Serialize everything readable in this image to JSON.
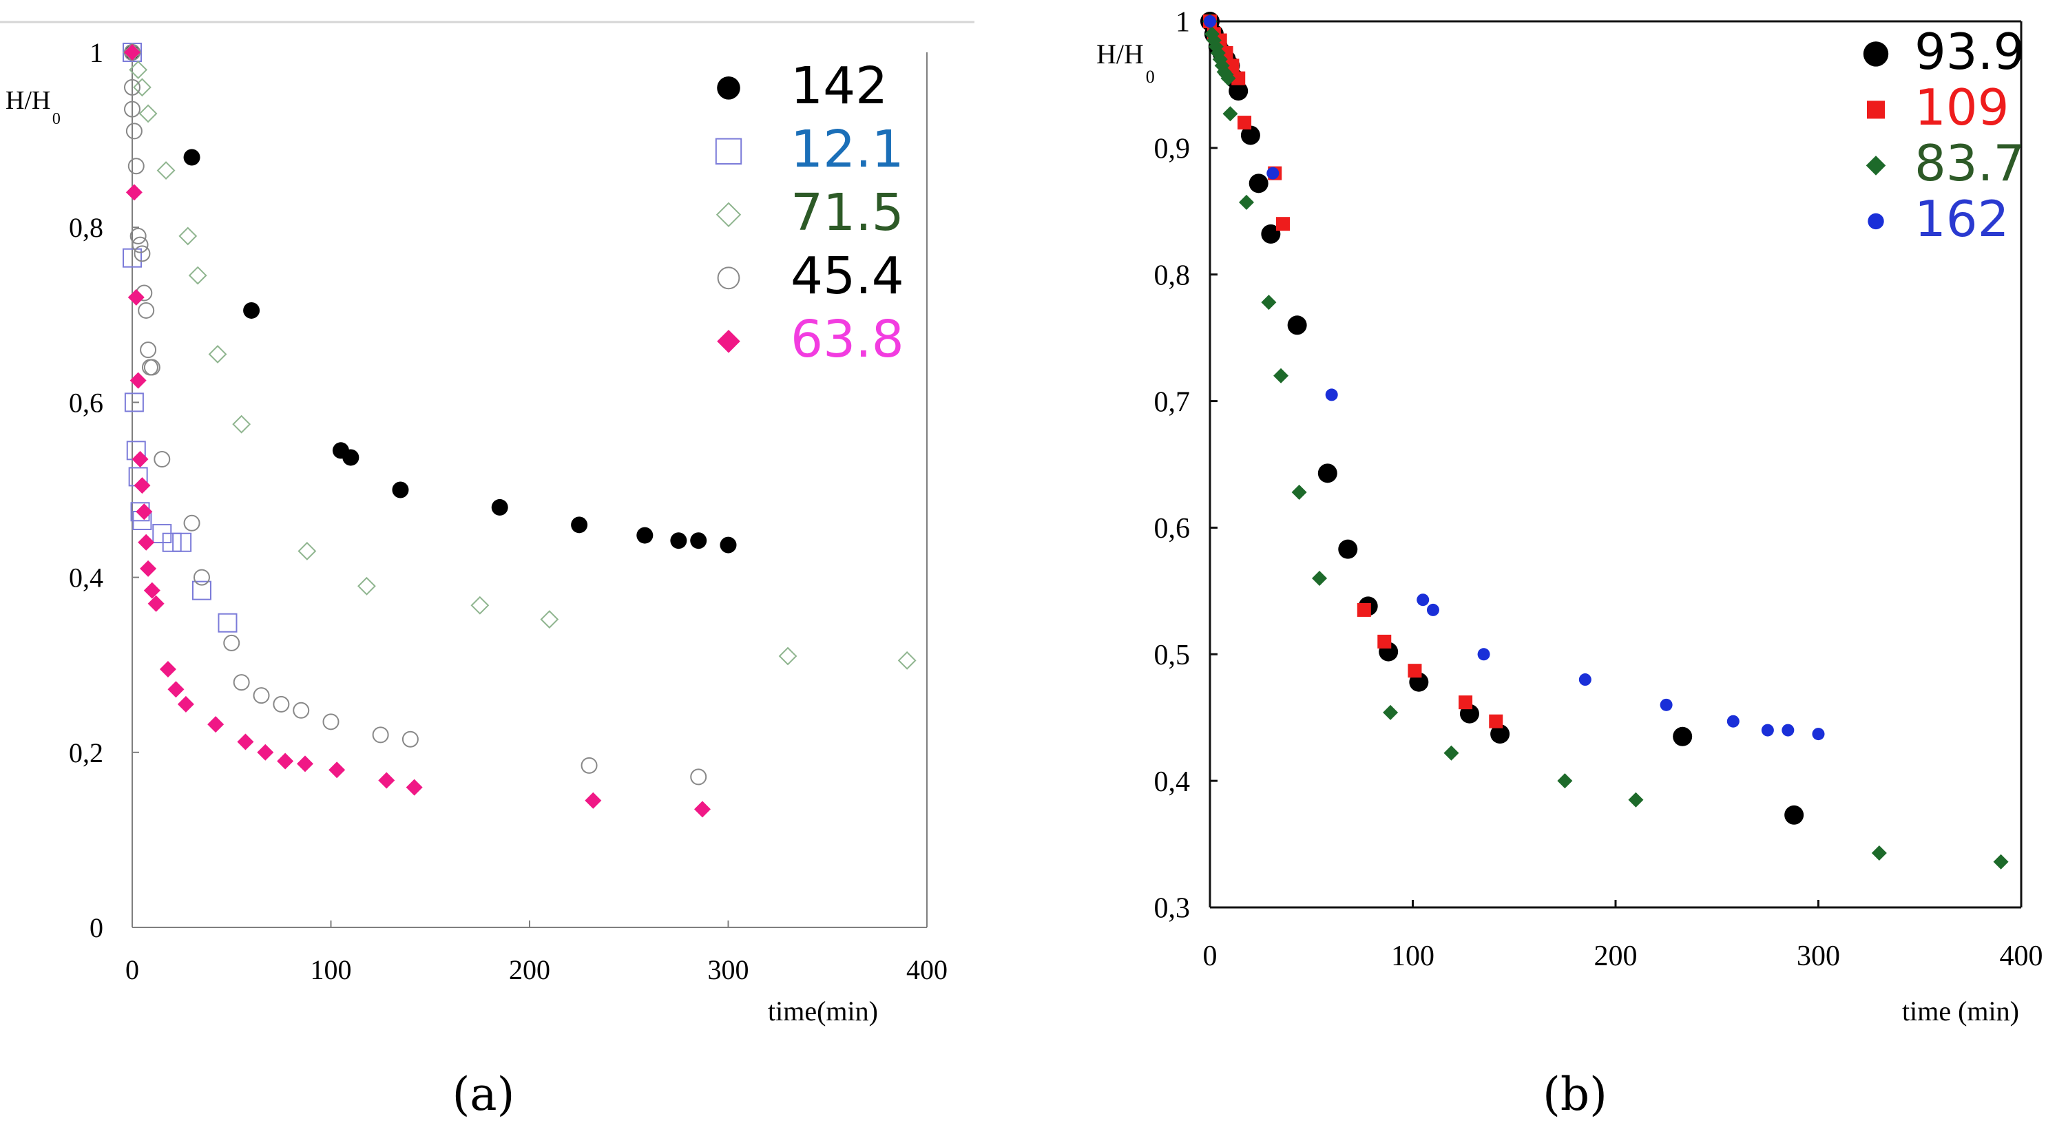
{
  "figure": {
    "captions": [
      "(a)",
      "(b)"
    ],
    "colors": {
      "black": "#000000",
      "blue": "#7b7bd9",
      "blueText": "#1b6fb8",
      "green": "#8fb58f",
      "greenText": "#2d5a27",
      "gray": "#888888",
      "magenta": "#f01886",
      "magentaText": "#f23ce0",
      "red": "#ee1c1c",
      "darkGreen": "#1d6a2a",
      "royalBlue": "#1a2fd8",
      "legendBlue": "#2a3ad0"
    }
  },
  "chart_data": [
    {
      "type": "scatter",
      "title": "",
      "ylabel": "H/H",
      "ylabel_subscript": "0",
      "xlabel": "time(min)",
      "xlim": [
        0,
        400
      ],
      "ylim": [
        0,
        1
      ],
      "x_ticks": [
        0,
        100,
        200,
        300,
        400
      ],
      "x_tick_labels": [
        "0",
        "100",
        "200",
        "300",
        "400"
      ],
      "y_ticks": [
        0,
        0.2,
        0.4,
        0.6,
        0.8,
        1
      ],
      "y_tick_labels": [
        "0",
        "0,2",
        "0,4",
        "0,6",
        "0,8",
        "1"
      ],
      "grid": false,
      "legend_position": "top-right",
      "series": [
        {
          "name": "142",
          "marker": "circle-filled",
          "color": "#000000",
          "textColor": "#000000",
          "x": [
            0,
            30,
            60,
            105,
            110,
            135,
            185,
            225,
            258,
            275,
            285,
            300
          ],
          "y": [
            1,
            0.88,
            0.705,
            0.545,
            0.537,
            0.5,
            0.48,
            0.46,
            0.448,
            0.442,
            0.442,
            0.437
          ]
        },
        {
          "name": "12.1",
          "marker": "square-open",
          "color": "#7b7bd9",
          "textColor": "#1b6fb8",
          "x": [
            0,
            0,
            1,
            2,
            3,
            4,
            5,
            15,
            20,
            25,
            35,
            48
          ],
          "y": [
            1,
            0.765,
            0.6,
            0.545,
            0.515,
            0.475,
            0.465,
            0.45,
            0.44,
            0.44,
            0.385,
            0.348
          ]
        },
        {
          "name": "71.5",
          "marker": "diamond-open",
          "color": "#8fb58f",
          "textColor": "#2d5a27",
          "x": [
            0,
            3,
            5,
            8,
            17,
            28,
            33,
            43,
            55,
            88,
            118,
            175,
            210,
            330,
            390
          ],
          "y": [
            1,
            0.98,
            0.96,
            0.93,
            0.865,
            0.79,
            0.745,
            0.655,
            0.575,
            0.43,
            0.39,
            0.368,
            0.352,
            0.31,
            0.305
          ]
        },
        {
          "name": "45.4",
          "marker": "circle-open",
          "color": "#888888",
          "textColor": "#000000",
          "x": [
            0,
            0,
            0,
            1,
            2,
            3,
            4,
            5,
            6,
            7,
            8,
            9,
            10,
            15,
            30,
            35,
            50,
            55,
            65,
            75,
            85,
            100,
            125,
            140,
            230,
            285
          ],
          "y": [
            1,
            0.96,
            0.935,
            0.91,
            0.87,
            0.79,
            0.78,
            0.77,
            0.725,
            0.705,
            0.66,
            0.64,
            0.64,
            0.535,
            0.462,
            0.4,
            0.325,
            0.28,
            0.265,
            0.255,
            0.248,
            0.235,
            0.22,
            0.215,
            0.185,
            0.172
          ]
        },
        {
          "name": "63.8",
          "marker": "diamond-filled",
          "color": "#f01886",
          "textColor": "#f23ce0",
          "x": [
            0,
            1,
            2,
            3,
            4,
            5,
            6,
            7,
            8,
            10,
            12,
            18,
            22,
            27,
            42,
            57,
            67,
            77,
            87,
            103,
            128,
            142,
            232,
            287
          ],
          "y": [
            1,
            0.84,
            0.72,
            0.625,
            0.535,
            0.505,
            0.475,
            0.44,
            0.41,
            0.385,
            0.37,
            0.295,
            0.272,
            0.255,
            0.232,
            0.212,
            0.2,
            0.19,
            0.187,
            0.18,
            0.168,
            0.16,
            0.145,
            0.135
          ]
        }
      ]
    },
    {
      "type": "scatter",
      "title": "",
      "ylabel": "H/H",
      "ylabel_subscript": "0",
      "xlabel": "time (min)",
      "xlim": [
        0,
        400
      ],
      "ylim": [
        0.3,
        1
      ],
      "x_ticks": [
        0,
        100,
        200,
        300,
        400
      ],
      "x_tick_labels": [
        "0",
        "100",
        "200",
        "300",
        "400"
      ],
      "y_ticks": [
        0.3,
        0.4,
        0.5,
        0.6,
        0.7,
        0.8,
        0.9,
        1
      ],
      "y_tick_labels": [
        "0,3",
        "0,4",
        "0,5",
        "0,6",
        "0,7",
        "0,8",
        "0,9",
        "1"
      ],
      "grid": false,
      "legend_position": "top-right",
      "series": [
        {
          "name": "93.9",
          "marker": "circle-filled-large",
          "color": "#000000",
          "textColor": "#000000",
          "x": [
            0,
            2,
            4,
            6,
            8,
            10,
            12,
            14,
            20,
            24,
            30,
            43,
            58,
            68,
            78,
            88,
            103,
            128,
            143,
            233,
            288
          ],
          "y": [
            1,
            0.99,
            0.98,
            0.975,
            0.97,
            0.965,
            0.955,
            0.945,
            0.91,
            0.872,
            0.832,
            0.76,
            0.643,
            0.583,
            0.538,
            0.502,
            0.478,
            0.453,
            0.437,
            0.435,
            0.373
          ]
        },
        {
          "name": "109",
          "marker": "square-filled",
          "color": "#ee1c1c",
          "textColor": "#ee1c1c",
          "x": [
            0,
            2,
            5,
            8,
            11,
            14,
            17,
            32,
            36,
            76,
            86,
            101,
            126,
            141
          ],
          "y": [
            1,
            0.99,
            0.985,
            0.975,
            0.965,
            0.955,
            0.92,
            0.88,
            0.84,
            0.535,
            0.51,
            0.487,
            0.462,
            0.447
          ]
        },
        {
          "name": "83.7",
          "marker": "diamond-filled",
          "color": "#1d6a2a",
          "textColor": "#2d5a27",
          "x": [
            0,
            1,
            2,
            3,
            4,
            5,
            6,
            7,
            8,
            9,
            10,
            18,
            29,
            35,
            44,
            54,
            89,
            119,
            175,
            210,
            330,
            390
          ],
          "y": [
            1,
            0.99,
            0.985,
            0.98,
            0.975,
            0.97,
            0.965,
            0.96,
            0.958,
            0.955,
            0.927,
            0.857,
            0.778,
            0.72,
            0.628,
            0.56,
            0.454,
            0.422,
            0.4,
            0.385,
            0.343,
            0.336
          ]
        },
        {
          "name": "162",
          "marker": "circle-filled-small",
          "color": "#1a2fd8",
          "textColor": "#2a3ad0",
          "x": [
            0,
            31,
            60,
            105,
            110,
            135,
            185,
            225,
            258,
            275,
            285,
            300
          ],
          "y": [
            1,
            0.88,
            0.705,
            0.543,
            0.535,
            0.5,
            0.48,
            0.46,
            0.447,
            0.44,
            0.44,
            0.437
          ]
        }
      ]
    }
  ]
}
